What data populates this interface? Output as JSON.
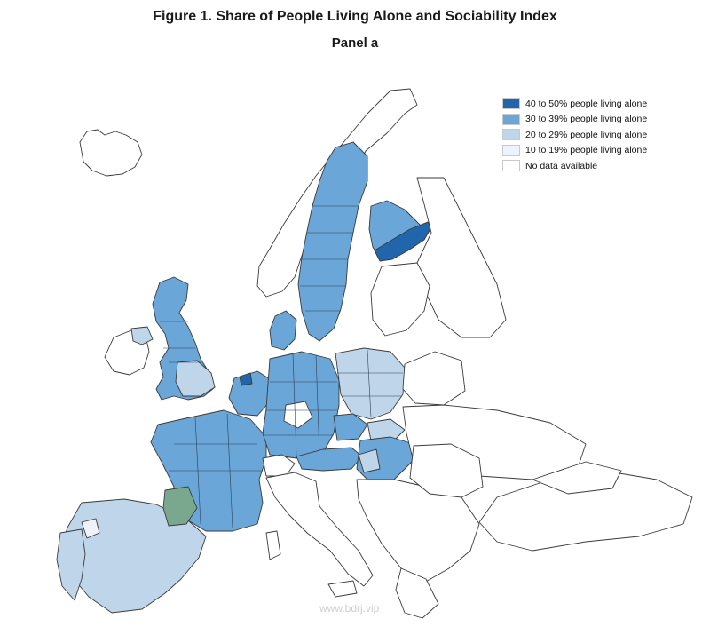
{
  "title": "Figure 1. Share of People Living Alone and Sociability Index",
  "subtitle": "Panel a",
  "legend": [
    {
      "label": "40 to 50% people living alone",
      "color": "#2166ac"
    },
    {
      "label": "30 to 39% people living alone",
      "color": "#6aa6d8"
    },
    {
      "label": "20 to 29% people living alone",
      "color": "#bfd6ea"
    },
    {
      "label": "10 to 19% people living alone",
      "color": "#eef2fb"
    },
    {
      "label": "No data available",
      "color": "#ffffff"
    }
  ],
  "watermark": "www.bdrj.vip"
}
